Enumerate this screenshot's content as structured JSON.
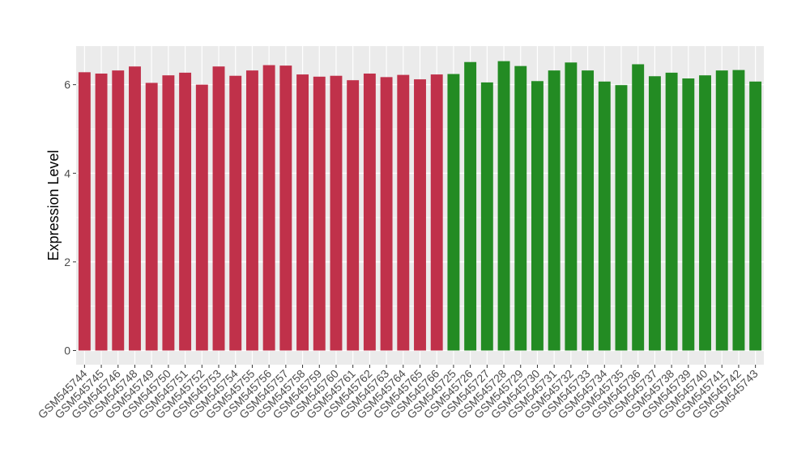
{
  "chart_data": {
    "type": "bar",
    "ylabel": "Expression Level",
    "xlabel": "",
    "ylim": [
      -0.32,
      6.87
    ],
    "yticks": [
      0,
      2,
      4,
      6
    ],
    "grid": true,
    "legend": "none",
    "colors": {
      "group_1": "#C0314A",
      "group_2": "#238B23",
      "panel_bg": "#EBEBEB",
      "grid": "#FFFFFF"
    },
    "categories": [
      "GSM545744",
      "GSM545745",
      "GSM545746",
      "GSM545748",
      "GSM545749",
      "GSM545750",
      "GSM545751",
      "GSM545752",
      "GSM545753",
      "GSM545754",
      "GSM545755",
      "GSM545756",
      "GSM545757",
      "GSM545758",
      "GSM545759",
      "GSM545760",
      "GSM545761",
      "GSM545762",
      "GSM545763",
      "GSM545764",
      "GSM545765",
      "GSM545766",
      "GSM545725",
      "GSM545726",
      "GSM545727",
      "GSM545728",
      "GSM545729",
      "GSM545730",
      "GSM545731",
      "GSM545732",
      "GSM545733",
      "GSM545734",
      "GSM545735",
      "GSM545736",
      "GSM545737",
      "GSM545738",
      "GSM545739",
      "GSM545740",
      "GSM545741",
      "GSM545742",
      "GSM545743"
    ],
    "values": [
      6.28,
      6.25,
      6.32,
      6.41,
      6.04,
      6.21,
      6.27,
      6.0,
      6.41,
      6.2,
      6.32,
      6.44,
      6.43,
      6.23,
      6.18,
      6.2,
      6.1,
      6.25,
      6.17,
      6.22,
      6.12,
      6.23,
      6.24,
      6.51,
      6.05,
      6.53,
      6.42,
      6.08,
      6.32,
      6.5,
      6.32,
      6.07,
      5.99,
      6.46,
      6.19,
      6.27,
      6.14,
      6.21,
      6.32,
      6.33,
      6.07
    ],
    "groups": [
      1,
      1,
      1,
      1,
      1,
      1,
      1,
      1,
      1,
      1,
      1,
      1,
      1,
      1,
      1,
      1,
      1,
      1,
      1,
      1,
      1,
      1,
      2,
      2,
      2,
      2,
      2,
      2,
      2,
      2,
      2,
      2,
      2,
      2,
      2,
      2,
      2,
      2,
      2,
      2,
      2
    ]
  }
}
